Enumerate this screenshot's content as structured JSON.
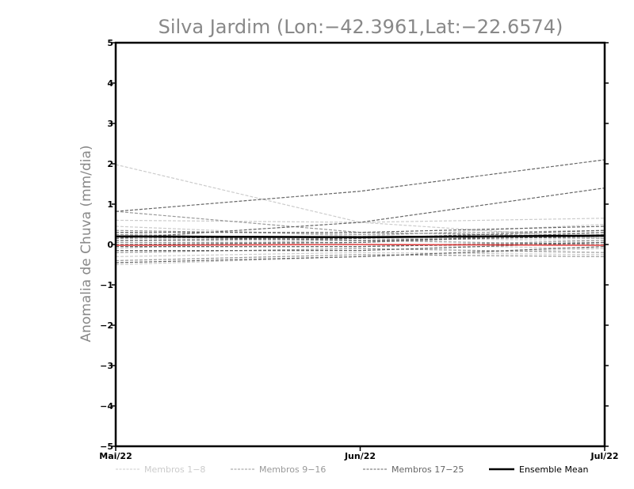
{
  "chart_data": {
    "type": "line",
    "title": "Silva Jardim (Lon:−42.3961,Lat:−22.6574)",
    "xlabel": "",
    "ylabel": "Anomalia de Chuva (mm/dia)",
    "categories": [
      "Mai/22",
      "Jun/22",
      "Jul/22"
    ],
    "ylim": [
      -5,
      5
    ],
    "yticks": [
      "−5",
      "−4",
      "−3",
      "−2",
      "−1",
      "0",
      "1",
      "2",
      "3",
      "4",
      "5"
    ],
    "grid": false,
    "legend_position": "bottom",
    "legend": [
      {
        "label": "Membros 1−8",
        "color": "#cccccc",
        "style": "dashed"
      },
      {
        "label": "Membros 9−16",
        "color": "#999999",
        "style": "dashed"
      },
      {
        "label": "Membros 17−25",
        "color": "#666666",
        "style": "dashed"
      },
      {
        "label": "Ensemble Mean",
        "color": "#000000",
        "style": "solid"
      }
    ],
    "series": [
      {
        "group": "1-8",
        "color": "#cccccc",
        "values": [
          1.98,
          0.55,
          0.15
        ]
      },
      {
        "group": "1-8",
        "color": "#cccccc",
        "values": [
          0.6,
          0.55,
          0.65
        ]
      },
      {
        "group": "1-8",
        "color": "#cccccc",
        "values": [
          0.45,
          0.2,
          0.5
        ]
      },
      {
        "group": "1-8",
        "color": "#cccccc",
        "values": [
          0.3,
          0.0,
          -0.1
        ]
      },
      {
        "group": "1-8",
        "color": "#cccccc",
        "values": [
          0.1,
          0.1,
          0.3
        ]
      },
      {
        "group": "1-8",
        "color": "#cccccc",
        "values": [
          -0.1,
          0.15,
          0.1
        ]
      },
      {
        "group": "1-8",
        "color": "#cccccc",
        "values": [
          -0.3,
          -0.2,
          -0.25
        ]
      },
      {
        "group": "1-8",
        "color": "#cccccc",
        "values": [
          -0.5,
          -0.3,
          -0.1
        ]
      },
      {
        "group": "9-16",
        "color": "#999999",
        "values": [
          0.82,
          0.3,
          0.2
        ]
      },
      {
        "group": "9-16",
        "color": "#999999",
        "values": [
          0.35,
          0.25,
          0.35
        ]
      },
      {
        "group": "9-16",
        "color": "#999999",
        "values": [
          0.25,
          0.1,
          0.0
        ]
      },
      {
        "group": "9-16",
        "color": "#999999",
        "values": [
          0.05,
          0.05,
          0.25
        ]
      },
      {
        "group": "9-16",
        "color": "#999999",
        "values": [
          -0.05,
          -0.05,
          0.1
        ]
      },
      {
        "group": "9-16",
        "color": "#999999",
        "values": [
          -0.2,
          -0.1,
          -0.2
        ]
      },
      {
        "group": "9-16",
        "color": "#999999",
        "values": [
          -0.4,
          -0.25,
          -0.3
        ]
      },
      {
        "group": "9-16",
        "color": "#999999",
        "values": [
          0.15,
          0.2,
          0.15
        ]
      },
      {
        "group": "17-25",
        "color": "#666666",
        "values": [
          0.82,
          1.32,
          2.1
        ]
      },
      {
        "group": "17-25",
        "color": "#666666",
        "values": [
          0.15,
          0.55,
          1.4
        ]
      },
      {
        "group": "17-25",
        "color": "#666666",
        "values": [
          0.3,
          0.3,
          0.45
        ]
      },
      {
        "group": "17-25",
        "color": "#666666",
        "values": [
          0.1,
          0.15,
          0.35
        ]
      },
      {
        "group": "17-25",
        "color": "#666666",
        "values": [
          0.0,
          0.05,
          0.3
        ]
      },
      {
        "group": "17-25",
        "color": "#666666",
        "values": [
          -0.05,
          -0.05,
          0.05
        ]
      },
      {
        "group": "17-25",
        "color": "#666666",
        "values": [
          -0.15,
          -0.15,
          0.05
        ]
      },
      {
        "group": "17-25",
        "color": "#666666",
        "values": [
          -0.45,
          -0.3,
          -0.05
        ]
      },
      {
        "group": "17-25",
        "color": "#666666",
        "values": [
          0.2,
          0.1,
          0.2
        ]
      }
    ],
    "ensemble_mean": {
      "name": "Ensemble Mean",
      "color": "#000000",
      "values": [
        0.2,
        0.18,
        0.22
      ]
    },
    "reference": {
      "color": "#e04040",
      "values": [
        -0.02,
        0.0,
        -0.02
      ]
    }
  }
}
